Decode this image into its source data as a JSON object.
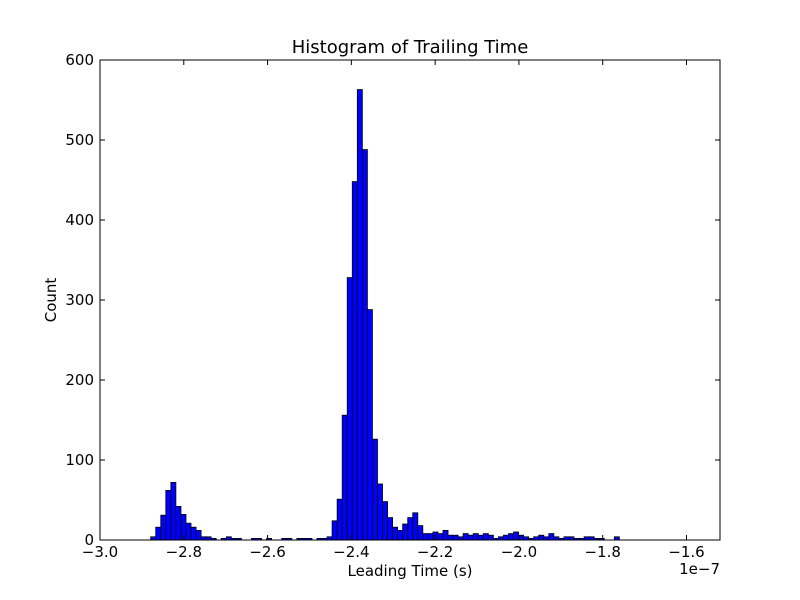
{
  "chart_data": {
    "type": "bar",
    "title": "Histogram of Trailing Time",
    "xlabel": "Leading Time (s)",
    "ylabel": "Count",
    "x_offset_label": "1e−7",
    "xlim": [
      -3.0,
      -1.52
    ],
    "ylim": [
      0,
      600
    ],
    "x_ticks": [
      -3.0,
      -2.8,
      -2.6,
      -2.4,
      -2.2,
      -2.0,
      -1.8,
      -1.6
    ],
    "x_tick_labels": [
      "−3.0",
      "−2.8",
      "−2.6",
      "−2.4",
      "−2.2",
      "−2.0",
      "−1.8",
      "−1.6"
    ],
    "y_ticks": [
      0,
      100,
      200,
      300,
      400,
      500,
      600
    ],
    "y_tick_labels": [
      "0",
      "100",
      "200",
      "300",
      "400",
      "500",
      "600"
    ],
    "bar_color": "#0000ff",
    "edge_color": "#000000",
    "grid": false,
    "bins": {
      "start": -2.879,
      "width": 0.01203,
      "values": [
        4,
        16,
        31,
        62,
        72,
        42,
        32,
        21,
        16,
        12,
        4,
        4,
        2,
        0,
        2,
        4,
        2,
        2,
        0,
        0,
        2,
        2,
        0,
        2,
        0,
        0,
        2,
        2,
        0,
        2,
        2,
        2,
        0,
        2,
        2,
        4,
        24,
        51,
        156,
        328,
        448,
        563,
        488,
        288,
        126,
        70,
        48,
        28,
        16,
        12,
        20,
        28,
        34,
        18,
        8,
        8,
        10,
        8,
        12,
        6,
        6,
        4,
        8,
        6,
        8,
        6,
        8,
        6,
        2,
        4,
        6,
        8,
        10,
        6,
        4,
        2,
        4,
        6,
        4,
        8,
        4,
        2,
        4,
        4,
        2,
        2,
        4,
        4,
        2,
        2,
        0,
        0,
        4
      ]
    }
  }
}
